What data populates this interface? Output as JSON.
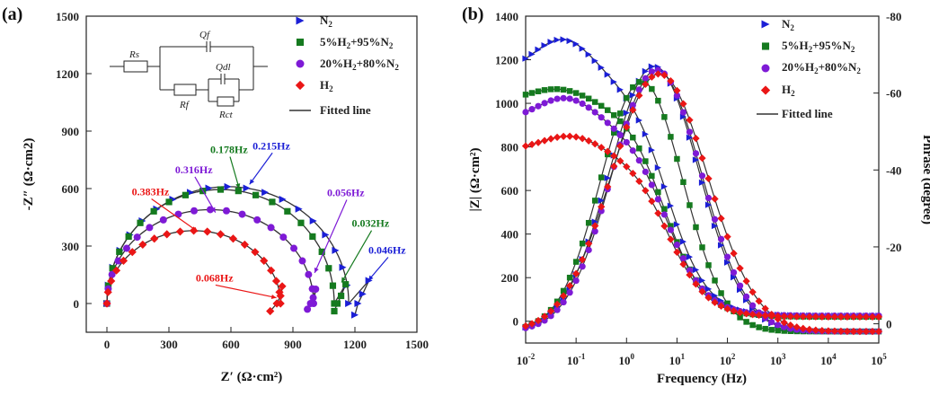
{
  "chart_data": [
    {
      "panel_label": "(a)",
      "type": "scatter",
      "xlabel": "Z′ (Ω·cm²)",
      "ylabel": "-Z″ (Ω·cm2)",
      "xlim": [
        -100,
        1500
      ],
      "ylim": [
        -150,
        1500
      ],
      "xticks": [
        "0",
        "300",
        "600",
        "900",
        "1200",
        "1500"
      ],
      "yticks": [
        "0",
        "300",
        "600",
        "900",
        "1200",
        "1500"
      ],
      "legend": [
        "N2",
        "5%H2+95%N2",
        "20%H2+80%N2",
        "H2",
        "Fitted line"
      ],
      "fit_label": "Fitted line",
      "circuit_labels": {
        "rs": "Rs",
        "qf": "Qf",
        "qdl": "Qdl",
        "rf": "Rf",
        "rct": "Rct"
      },
      "series": [
        {
          "name": "N2",
          "color": "#1b1fd6",
          "marker": "triangle",
          "arc": [
            0,
            610,
            1170
          ],
          "tail": [
            [
              1268,
              120
            ],
            [
              1238,
              50
            ],
            [
              1215,
              0
            ],
            [
              1200,
              -60
            ]
          ]
        },
        {
          "name": "5%H2+95%N2",
          "color": "#157a1f",
          "marker": "square",
          "arc": [
            0,
            595,
            1100
          ],
          "tail": [
            [
              1155,
              100
            ],
            [
              1133,
              40
            ],
            [
              1115,
              0
            ],
            [
              1100,
              -40
            ]
          ]
        },
        {
          "name": "20%H2+80%N2",
          "color": "#7e1ad6",
          "marker": "circle",
          "arc": [
            0,
            490,
            1000
          ],
          "tail": [
            [
              1010,
              75
            ],
            [
              998,
              30
            ],
            [
              985,
              0
            ],
            [
              970,
              -30
            ]
          ]
        },
        {
          "name": "H2",
          "color": "#ea1616",
          "marker": "diamond",
          "arc": [
            0,
            380,
            840
          ],
          "tail": [
            [
              848,
              90
            ],
            [
              840,
              40
            ],
            [
              822,
              0
            ],
            [
              790,
              -40
            ]
          ]
        }
      ],
      "annotations": [
        {
          "text": "0.215Hz",
          "color": "#1b1fd6",
          "target": [
            690,
            622
          ],
          "label": [
            705,
            805
          ]
        },
        {
          "text": "0.178Hz",
          "color": "#157a1f",
          "target": [
            640,
            600
          ],
          "label": [
            500,
            785
          ]
        },
        {
          "text": "0.316Hz",
          "color": "#7e1ad6",
          "target": [
            525,
            475
          ],
          "label": [
            330,
            680
          ]
        },
        {
          "text": "0.383Hz",
          "color": "#ea1616",
          "target": [
            440,
            375
          ],
          "label": [
            120,
            565
          ]
        },
        {
          "text": "0.056Hz",
          "color": "#7e1ad6",
          "target": [
            1005,
            160
          ],
          "label": [
            1065,
            560
          ]
        },
        {
          "text": "0.032Hz",
          "color": "#157a1f",
          "target": [
            1135,
            110
          ],
          "label": [
            1185,
            400
          ]
        },
        {
          "text": "0.046Hz",
          "color": "#1b1fd6",
          "target": [
            1265,
            120
          ],
          "label": [
            1265,
            260
          ]
        },
        {
          "text": "0.068Hz",
          "color": "#ea1616",
          "target": [
            820,
            30
          ],
          "label": [
            430,
            115
          ]
        }
      ]
    },
    {
      "panel_label": "(b)",
      "type": "line",
      "xlabel": "Frequency (Hz)",
      "ylabel_left": "|Z| (Ω·cm²)",
      "ylabel_right": "Phrase (degree)",
      "x_scale": "log",
      "xlim": [
        0.01,
        100000
      ],
      "ylim_left": [
        -100,
        1400
      ],
      "ylim_right": [
        5,
        -80
      ],
      "xticks": [
        {
          "base": "10",
          "exp": "-2"
        },
        {
          "base": "10",
          "exp": "-1"
        },
        {
          "base": "10",
          "exp": "0"
        },
        {
          "base": "10",
          "exp": "1"
        },
        {
          "base": "10",
          "exp": "2"
        },
        {
          "base": "10",
          "exp": "3"
        },
        {
          "base": "10",
          "exp": "4"
        },
        {
          "base": "10",
          "exp": "5"
        }
      ],
      "yticks_left": [
        "0",
        "200",
        "400",
        "600",
        "800",
        "1000",
        "1200",
        "1400"
      ],
      "yticks_right": [
        "0",
        "-20",
        "-40",
        "-60",
        "-80"
      ],
      "legend": [
        "N2",
        "5%H2+95%N2",
        "20%H2+80%N2",
        "H2",
        "Fitted line"
      ],
      "fit_label": "Fitted line",
      "series": [
        {
          "name": "N2",
          "color": "#1b1fd6",
          "marker": "triangle",
          "mag": {
            "peak": 1300,
            "peakLogF": -1.25,
            "lowVal": 1140,
            "rs": 25,
            "fc": 0.8
          },
          "phase": {
            "max": -67,
            "center": 0.55,
            "width": 1.25
          }
        },
        {
          "name": "5%H2+95%N2",
          "color": "#157a1f",
          "marker": "square",
          "mag": {
            "peak": 1070,
            "peakLogF": -1.35,
            "lowVal": 1010,
            "rs": 20,
            "fc": 0.75
          },
          "phase": {
            "max": -63,
            "center": 0.3,
            "width": 1.15
          }
        },
        {
          "name": "20%H2+80%N2",
          "color": "#7e1ad6",
          "marker": "circle",
          "mag": {
            "peak": 1030,
            "peakLogF": -1.2,
            "lowVal": 920,
            "rs": 25,
            "fc": 0.78
          },
          "phase": {
            "max": -66,
            "center": 0.6,
            "width": 1.25
          }
        },
        {
          "name": "H2",
          "color": "#ea1616",
          "marker": "diamond",
          "mag": {
            "peak": 855,
            "peakLogF": -1.1,
            "lowVal": 785,
            "rs": 20,
            "fc": 0.82
          },
          "phase": {
            "max": -65,
            "center": 0.65,
            "width": 1.35
          }
        }
      ]
    }
  ]
}
